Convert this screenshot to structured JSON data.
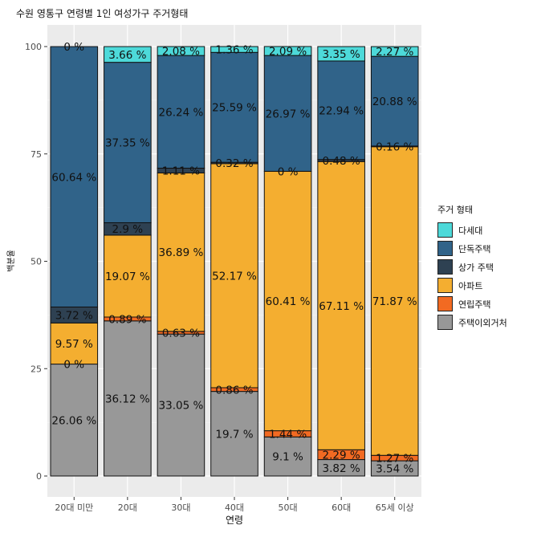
{
  "chart_data": {
    "type": "bar",
    "stacked": true,
    "title": "수원 영통구 연령별 1인 여성가구 주거형태",
    "xlabel": "연령",
    "ylabel": "백분율",
    "ylim": [
      0,
      100
    ],
    "yticks": [
      0,
      25,
      50,
      75,
      100
    ],
    "grid": true,
    "legend_title": "주거 형태",
    "legend_position": "right",
    "categories": [
      "20대 미만",
      "20대",
      "30대",
      "40대",
      "50대",
      "60대",
      "65세 이상"
    ],
    "series": [
      {
        "name": "다세대",
        "color": "#4DD9D9",
        "values": [
          0,
          3.66,
          2.08,
          1.36,
          2.09,
          3.35,
          2.27
        ],
        "labels": [
          "0 %",
          "3.66 %",
          "2.08 %",
          "1.36 %",
          "2.09 %",
          "3.35 %",
          "2.27 %"
        ]
      },
      {
        "name": "단독주택",
        "color": "#306389",
        "values": [
          60.64,
          37.35,
          26.24,
          25.59,
          26.97,
          22.94,
          20.88
        ],
        "labels": [
          "60.64 %",
          "37.35 %",
          "26.24 %",
          "25.59 %",
          "26.97 %",
          "22.94 %",
          "20.88 %"
        ]
      },
      {
        "name": "상가 주택",
        "color": "#2E4152",
        "values": [
          3.72,
          2.9,
          1.11,
          0.32,
          0,
          0.48,
          0.16
        ],
        "labels": [
          "3.72 %",
          "2.9 %",
          "1.11 %",
          "0.32 %",
          "0 %",
          "0.48 %",
          "0.16 %"
        ]
      },
      {
        "name": "아파트",
        "color": "#F4AE30",
        "values": [
          9.57,
          19.07,
          36.89,
          52.17,
          60.41,
          67.11,
          71.87
        ],
        "labels": [
          "9.57 %",
          "19.07 %",
          "36.89 %",
          "52.17 %",
          "60.41 %",
          "67.11 %",
          "71.87 %"
        ]
      },
      {
        "name": "연립주택",
        "color": "#F26A22",
        "values": [
          0,
          0.89,
          0.63,
          0.86,
          1.44,
          2.29,
          1.27
        ],
        "labels": [
          "0 %",
          "0.89 %",
          "0.63 %",
          "0.86 %",
          "1.44 %",
          "2.29 %",
          "1.27 %"
        ]
      },
      {
        "name": "주택이외거처",
        "color": "#989898",
        "values": [
          26.06,
          36.12,
          33.05,
          19.7,
          9.1,
          3.82,
          3.54
        ],
        "labels": [
          "26.06 %",
          "36.12 %",
          "33.05 %",
          "19.7 %",
          "9.1 %",
          "3.82 %",
          "3.54 %"
        ]
      }
    ]
  }
}
